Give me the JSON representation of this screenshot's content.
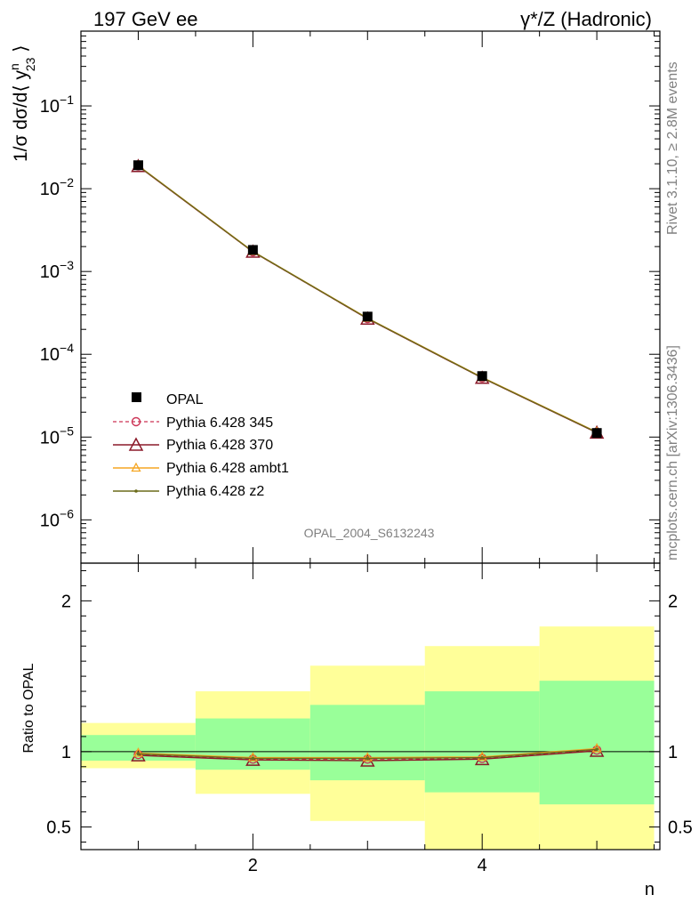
{
  "header": {
    "left_title": "197 GeV ee",
    "right_title": "γ*/Z (Hadronic)"
  },
  "side_texts": {
    "rivet": "Rivet 3.1.10, ≥ 2.8M events",
    "mcplots": "mcplots.cern.ch [arXiv:1306.3436]"
  },
  "analysis_id": "OPAL_2004_S6132243",
  "colors": {
    "data": "#000000",
    "pythia_345": "#cc3355",
    "pythia_370": "#8b1a2a",
    "pythia_ambt1": "#f5a623",
    "pythia_z2": "#6b6b1a",
    "band_inner": "#99ff99",
    "band_outer": "#ffff99"
  },
  "chart_data": [
    {
      "type": "line",
      "ylabel_main": "1/σ dσ/d⟨ y",
      "ylabel_sup": "n",
      "ylabel_sub": "23",
      "ylabel_end": " ⟩",
      "yscale": "log",
      "ylim": [
        3e-07,
        0.8
      ],
      "xlim": [
        0.5,
        5.55
      ],
      "y_ticks": [
        {
          "value": 0.1,
          "mant": "10",
          "exp": "−1"
        },
        {
          "value": 0.01,
          "mant": "10",
          "exp": "−2"
        },
        {
          "value": 0.001,
          "mant": "10",
          "exp": "−3"
        },
        {
          "value": 0.0001,
          "mant": "10",
          "exp": "−4"
        },
        {
          "value": 1e-05,
          "mant": "10",
          "exp": "−5"
        },
        {
          "value": 1e-06,
          "mant": "10",
          "exp": "−6"
        }
      ],
      "x": [
        1,
        2,
        3,
        4,
        5
      ],
      "data": {
        "name": "OPAL",
        "values": [
          0.0192,
          0.00182,
          0.000285,
          5.45e-05,
          1.12e-05
        ]
      },
      "series": [
        {
          "name": "Pythia 6.428 345",
          "color_key": "pythia_345",
          "marker": "circle",
          "dashed": true,
          "values": [
            0.0188,
            0.00173,
            0.00027,
            5.2e-05,
            1.14e-05
          ]
        },
        {
          "name": "Pythia 6.428 370",
          "color_key": "pythia_370",
          "marker": "triangle-open",
          "dashed": false,
          "values": [
            0.0187,
            0.00173,
            0.000269,
            5.18e-05,
            1.13e-05
          ]
        },
        {
          "name": "Pythia 6.428 ambt1",
          "color_key": "pythia_ambt1",
          "marker": "triangle-small",
          "dashed": false,
          "values": [
            0.019,
            0.00175,
            0.000273,
            5.27e-05,
            1.15e-05
          ]
        },
        {
          "name": "Pythia 6.428 z2",
          "color_key": "pythia_z2",
          "marker": "dot",
          "dashed": false,
          "values": [
            0.0189,
            0.00174,
            0.000271,
            5.22e-05,
            1.14e-05
          ]
        }
      ]
    },
    {
      "type": "line",
      "ylabel": "Ratio to OPAL",
      "xlabel": "n",
      "ylim": [
        0.35,
        2.25
      ],
      "xlim": [
        0.5,
        5.55
      ],
      "x_ticks": [
        {
          "value": 2,
          "label": "2"
        },
        {
          "value": 4,
          "label": "4"
        }
      ],
      "y_ticks": [
        {
          "value": 2,
          "label": "2"
        },
        {
          "value": 1,
          "label": "1"
        },
        {
          "value": 0.5,
          "label": "0.5"
        }
      ],
      "bins": [
        {
          "lo": 0.5,
          "hi": 1.5,
          "inner": [
            0.94,
            1.11
          ],
          "outer": [
            0.89,
            1.19
          ]
        },
        {
          "lo": 1.5,
          "hi": 2.5,
          "inner": [
            0.88,
            1.22
          ],
          "outer": [
            0.72,
            1.4
          ]
        },
        {
          "lo": 2.5,
          "hi": 3.5,
          "inner": [
            0.81,
            1.31
          ],
          "outer": [
            0.54,
            1.57
          ]
        },
        {
          "lo": 3.5,
          "hi": 4.5,
          "inner": [
            0.73,
            1.4
          ],
          "outer": [
            0.35,
            1.7
          ]
        },
        {
          "lo": 4.5,
          "hi": 5.5,
          "inner": [
            0.65,
            1.47
          ],
          "outer": [
            0.35,
            1.83
          ]
        }
      ],
      "ratio_series": [
        {
          "color_key": "pythia_345",
          "marker": "circle",
          "dashed": true,
          "values": [
            0.98,
            0.95,
            0.95,
            0.955,
            1.01
          ]
        },
        {
          "color_key": "pythia_370",
          "marker": "triangle-open",
          "dashed": false,
          "values": [
            0.975,
            0.945,
            0.94,
            0.95,
            1.005
          ]
        },
        {
          "color_key": "pythia_ambt1",
          "marker": "triangle-small",
          "dashed": false,
          "values": [
            0.99,
            0.96,
            0.96,
            0.965,
            1.02
          ]
        },
        {
          "color_key": "pythia_z2",
          "marker": "dot",
          "dashed": false,
          "values": [
            0.985,
            0.955,
            0.955,
            0.96,
            1.015
          ]
        }
      ]
    }
  ]
}
